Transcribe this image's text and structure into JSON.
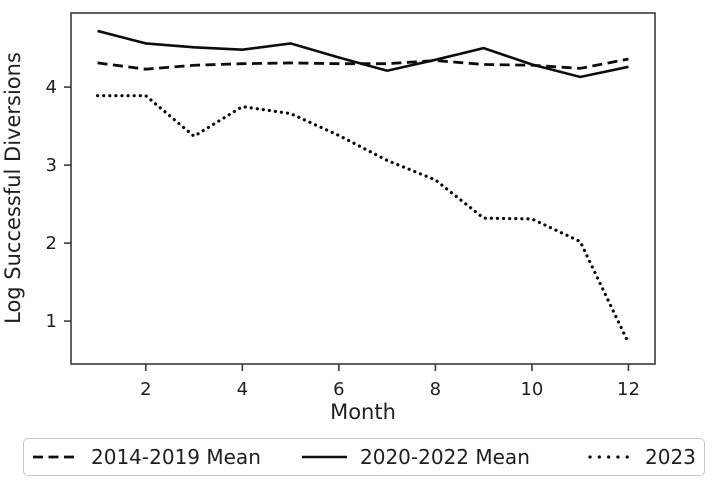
{
  "figure": {
    "background": "#ffffff"
  },
  "chart_data": {
    "type": "line",
    "title": "",
    "xlabel": "Month",
    "ylabel": "Log Successful Diversions",
    "x": [
      1,
      2,
      3,
      4,
      5,
      6,
      7,
      8,
      9,
      10,
      11,
      12
    ],
    "xticks": [
      2,
      4,
      6,
      8,
      10,
      12
    ],
    "yticks": [
      1,
      2,
      3,
      4
    ],
    "xlim": [
      0.45,
      12.55
    ],
    "ylim": [
      0.45,
      4.95
    ],
    "grid": false,
    "legend_position": "bottom-horizontal",
    "colors": {
      "line": "#0d0d0d",
      "text": "#1f1f1f",
      "frame": "#3a3a3a",
      "legend_border": "#c9c9c9"
    },
    "series": [
      {
        "name": "2014-2019 Mean",
        "style": "dashed",
        "values": [
          4.31,
          4.23,
          4.28,
          4.3,
          4.31,
          4.3,
          4.3,
          4.34,
          4.29,
          4.28,
          4.24,
          4.36
        ]
      },
      {
        "name": "2020-2022 Mean",
        "style": "solid",
        "values": [
          4.72,
          4.56,
          4.51,
          4.48,
          4.56,
          4.38,
          4.21,
          4.35,
          4.5,
          4.29,
          4.13,
          4.26
        ]
      },
      {
        "name": "2023",
        "style": "dotted",
        "values": [
          3.89,
          3.89,
          3.37,
          3.75,
          3.66,
          3.38,
          3.06,
          2.81,
          2.32,
          2.31,
          2.02,
          0.72
        ]
      }
    ]
  }
}
